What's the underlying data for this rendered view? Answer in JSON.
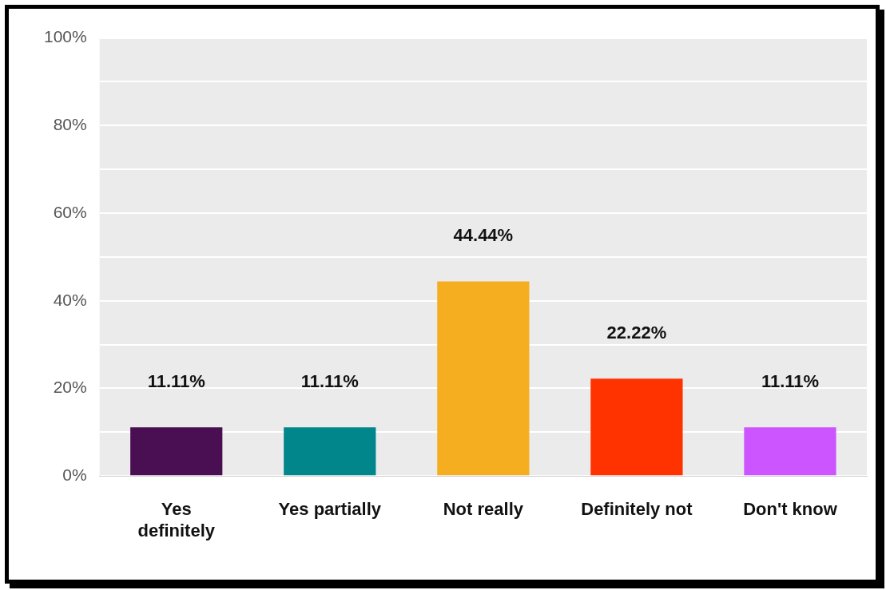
{
  "chart_data": {
    "type": "bar",
    "categories": [
      "Yes definitely",
      "Yes partially",
      "Not really",
      "Definitely not",
      "Don't know"
    ],
    "values": [
      11.11,
      11.11,
      44.44,
      22.22,
      11.11
    ],
    "colors": [
      "#4a0f52",
      "#00868b",
      "#f5ae20",
      "#ff3300",
      "#cc55ff"
    ],
    "value_labels": [
      "11.11%",
      "11.11%",
      "44.44%",
      "22.22%",
      "11.11%"
    ],
    "ylim": [
      0,
      100
    ],
    "yticks": [
      {
        "value": 0,
        "label": "0%"
      },
      {
        "value": 10,
        "label": null
      },
      {
        "value": 20,
        "label": "20%"
      },
      {
        "value": 30,
        "label": null
      },
      {
        "value": 40,
        "label": "40%"
      },
      {
        "value": 50,
        "label": null
      },
      {
        "value": 60,
        "label": "60%"
      },
      {
        "value": 70,
        "label": null
      },
      {
        "value": 80,
        "label": "80%"
      },
      {
        "value": 90,
        "label": null
      },
      {
        "value": 100,
        "label": "100%"
      }
    ],
    "grid": "y",
    "legend": false
  }
}
